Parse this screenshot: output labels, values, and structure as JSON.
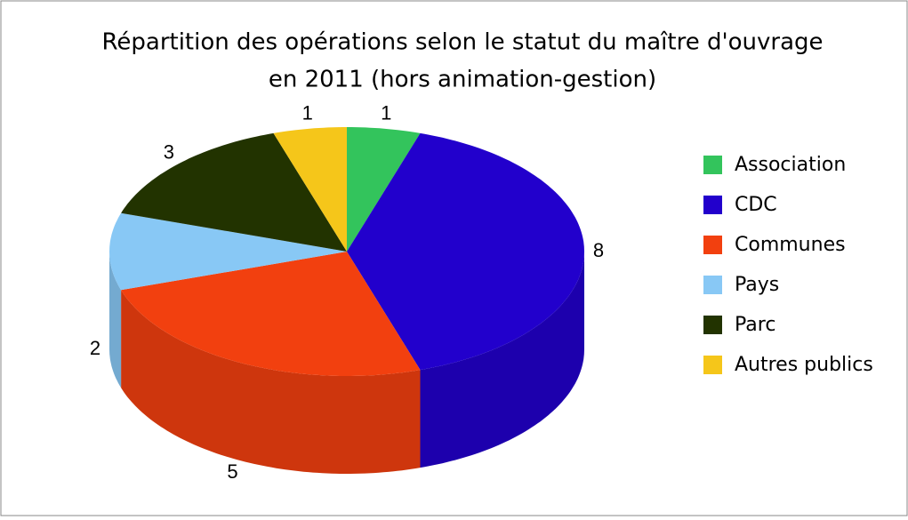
{
  "chart_data": {
    "type": "pie3d",
    "title": [
      "Répartition des opérations selon le statut du maître d'ouvrage",
      "en 2011 (hors animation-gestion)"
    ],
    "categories": [
      "Association",
      "CDC",
      "Communes",
      "Pays",
      "Parc",
      "Autres publics"
    ],
    "values": [
      1,
      8,
      5,
      2,
      3,
      1
    ],
    "colors": [
      "#33c45c",
      "#2200cc",
      "#f2400f",
      "#88c8f5",
      "#223300",
      "#f5c61a"
    ],
    "legend": "right"
  }
}
